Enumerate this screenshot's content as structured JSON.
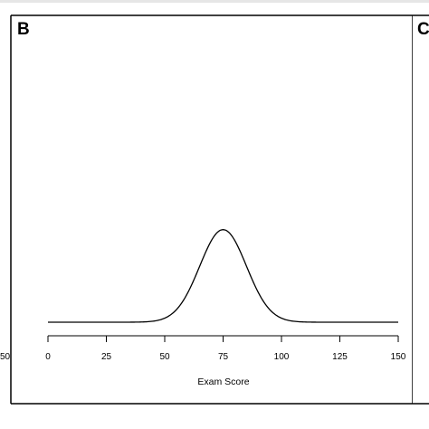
{
  "panel": {
    "letter": "B",
    "next_letter": "C",
    "prev_tick_fragment": "50"
  },
  "chart_data": {
    "type": "line",
    "title": "",
    "xlabel": "Exam Score",
    "ylabel": "",
    "xlim": [
      0,
      150
    ],
    "xticks": [
      0,
      25,
      50,
      75,
      100,
      125,
      150
    ],
    "xtick_labels": [
      "0",
      "25",
      "50",
      "75",
      "100",
      "125",
      "150"
    ],
    "series": [
      {
        "distribution": "normal",
        "mean": 75,
        "sd": 10,
        "relative_peak_height": 0.31
      }
    ],
    "grid": false,
    "line_color": "#000000"
  }
}
